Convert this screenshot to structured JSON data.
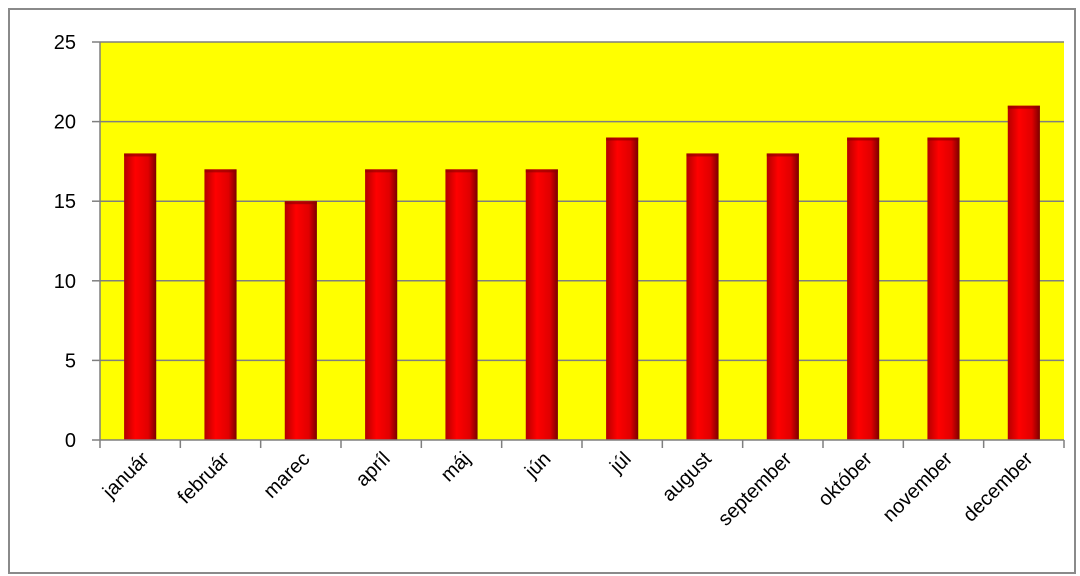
{
  "chart_data": {
    "type": "bar",
    "categories": [
      "január",
      "február",
      "marec",
      "apríl",
      "máj",
      "jún",
      "júl",
      "august",
      "september",
      "október",
      "november",
      "december"
    ],
    "values": [
      18,
      17,
      15,
      17,
      17,
      17,
      19,
      18,
      18,
      19,
      19,
      21
    ],
    "title": "",
    "xlabel": "",
    "ylabel": "",
    "ylim": [
      0,
      25
    ],
    "yticks": [
      0,
      5,
      10,
      15,
      20,
      25
    ],
    "grid": true,
    "legend": "none",
    "colors": {
      "plot_background": "#ffff00",
      "bar": "#ff0000",
      "bar_dark": "#8b0000",
      "gridline": "#7f7f7f"
    }
  }
}
